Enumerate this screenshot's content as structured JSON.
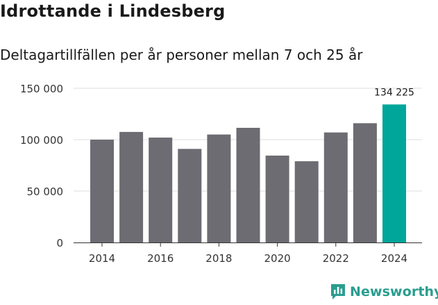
{
  "title": "Idrottande i Lindesberg",
  "subtitle": "Deltagartillfällen per år personer mellan 7 och 25 år",
  "brand": "Newsworthy",
  "colors": {
    "bar": "#6d6c73",
    "highlight": "#00a699",
    "grid": "#dddddd",
    "axis": "#333333",
    "brand": "#2a9d8f"
  },
  "chart_data": {
    "type": "bar",
    "title": "Idrottande i Lindesberg",
    "subtitle": "Deltagartillfällen per år personer mellan 7 och 25 år",
    "xlabel": "",
    "ylabel": "",
    "ylim": [
      0,
      150000
    ],
    "yticks": [
      0,
      50000,
      100000,
      150000
    ],
    "ytick_labels": [
      "0",
      "50 000",
      "100 000",
      "150 000"
    ],
    "categories": [
      "2014",
      "2015",
      "2016",
      "2017",
      "2018",
      "2019",
      "2020",
      "2021",
      "2022",
      "2023",
      "2024"
    ],
    "xtick_labels": [
      "2014",
      "2016",
      "2018",
      "2020",
      "2022",
      "2024"
    ],
    "values": [
      100000,
      107500,
      102000,
      91000,
      105000,
      111500,
      84500,
      79000,
      107000,
      116000,
      134225
    ],
    "highlight_index": 10,
    "data_labels": [
      {
        "index": 10,
        "text": "134 225"
      }
    ]
  }
}
